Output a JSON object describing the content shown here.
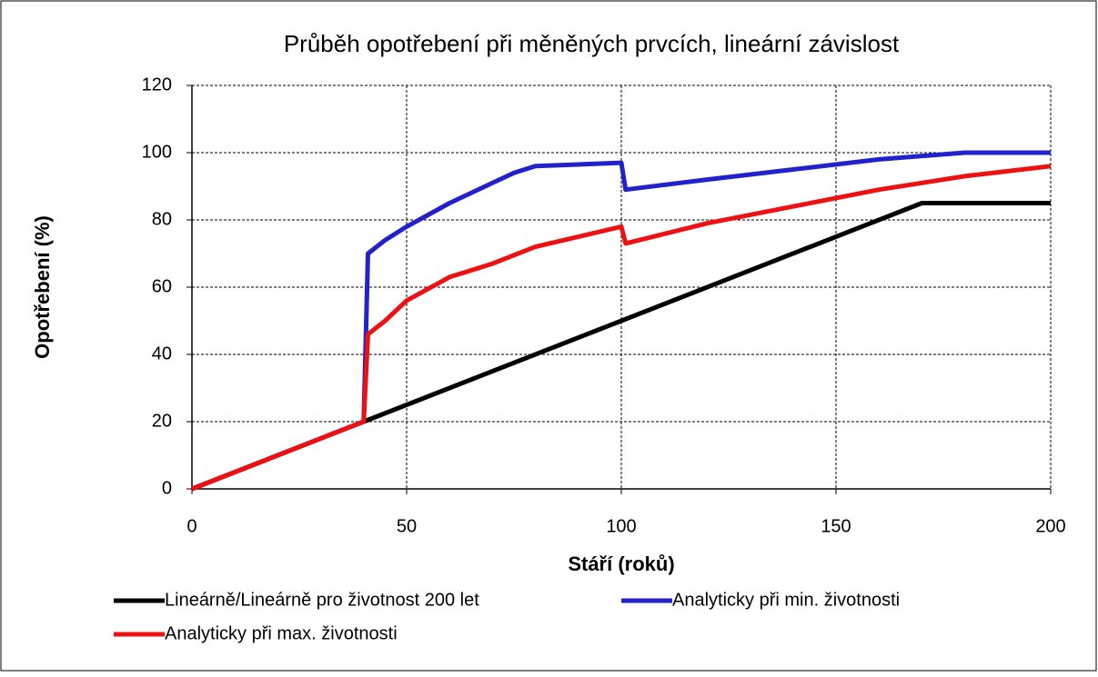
{
  "chart_data": {
    "type": "line",
    "title": "Průběh opotřebení při měněných prvcích, lineární závislost",
    "xlabel": "Stáří (roků)",
    "ylabel": "Opotřebení (%)",
    "xlim": [
      0,
      200
    ],
    "xticks": [
      0,
      50,
      100,
      150,
      200
    ],
    "ylim": [
      0,
      120
    ],
    "yticks": [
      0,
      20,
      40,
      60,
      80,
      100,
      120
    ],
    "grid": true,
    "legend": "bottom",
    "series": [
      {
        "name": "Lineárně/Lineárně pro životnost 200 let",
        "color": "#000000",
        "x": [
          0,
          40,
          170,
          200
        ],
        "values": [
          0,
          20,
          85,
          85
        ]
      },
      {
        "name": "Analyticky při min. životnosti",
        "color": "#2222cc",
        "x": [
          0,
          40,
          41,
          45,
          50,
          60,
          70,
          75,
          80,
          100,
          101,
          120,
          140,
          160,
          180,
          200
        ],
        "values": [
          0,
          20,
          70,
          74,
          78,
          85,
          91,
          94,
          96,
          97,
          89,
          92,
          95,
          98,
          100,
          100
        ]
      },
      {
        "name": "Analyticky při max. životnosti",
        "color": "#ee1111",
        "x": [
          0,
          40,
          41,
          45,
          50,
          60,
          70,
          80,
          100,
          101,
          120,
          140,
          160,
          180,
          200
        ],
        "values": [
          0,
          20,
          46,
          50,
          56,
          63,
          67,
          72,
          78,
          73,
          79,
          84,
          89,
          93,
          96
        ]
      }
    ]
  }
}
